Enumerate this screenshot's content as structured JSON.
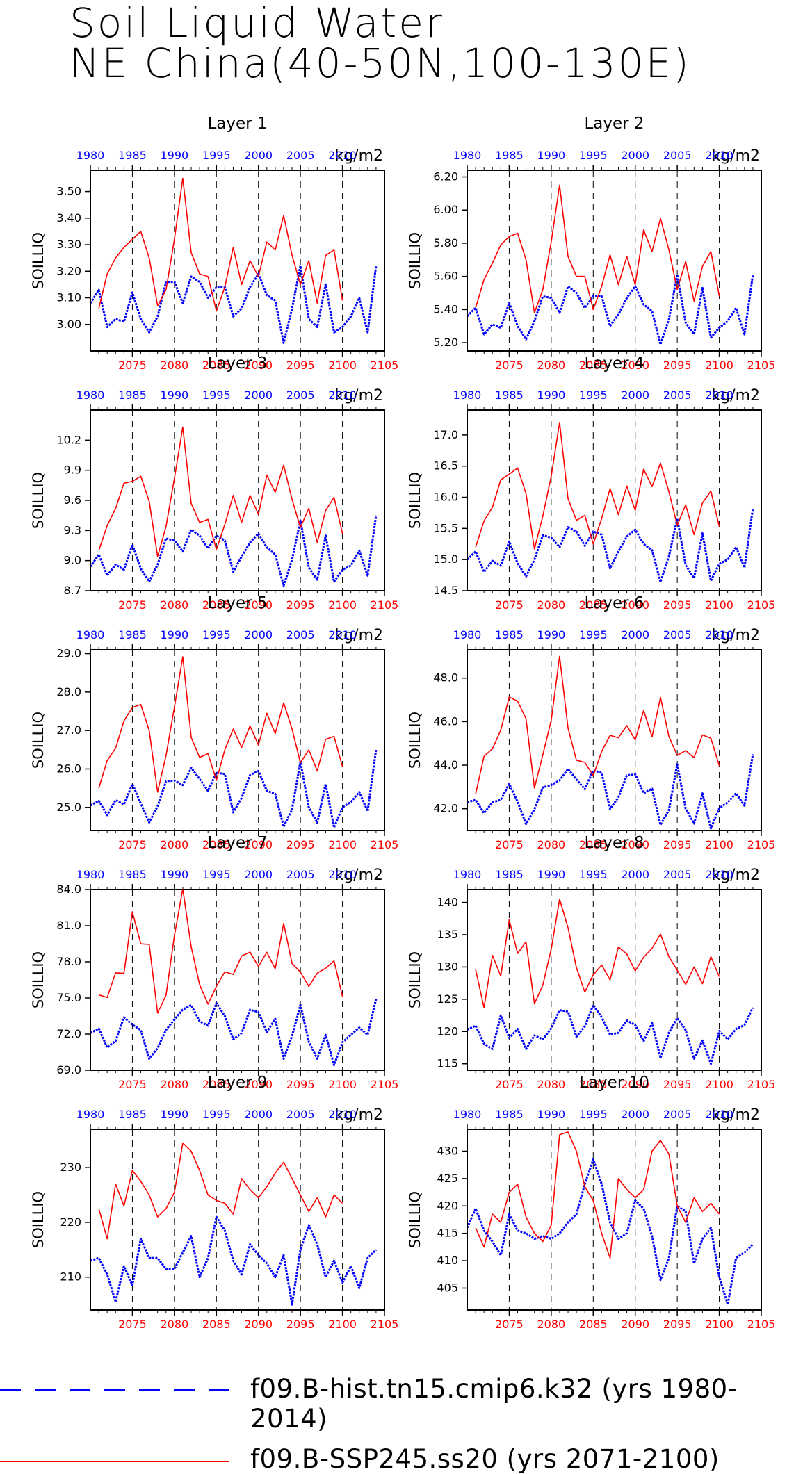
{
  "figure": {
    "title_line1": "Soil Liquid Water",
    "title_line2": "NE China(40-50N,100-130E)",
    "ylabel": "SOILLIQ",
    "units": "kg/m2",
    "top_axis_ticks": [
      1980,
      1985,
      1990,
      1995,
      2000,
      2005,
      2010
    ],
    "bottom_axis_ticks": [
      2075,
      2080,
      2085,
      2090,
      2095,
      2100,
      2105
    ],
    "hist_color": "#0000ff",
    "ssp_color": "#ff0000"
  },
  "legend": {
    "hist_label": "f09.B-hist.tn15.cmip6.k32 (yrs 1980-2014)",
    "ssp_label": "f09.B-SSP245.ss20 (yrs 2071-2100)"
  },
  "chart_data": [
    {
      "type": "line",
      "title": "Layer 1",
      "ylabel": "SOILLIQ",
      "units": "kg/m2",
      "yticks": [
        "3.00",
        "3.10",
        "3.20",
        "3.30",
        "3.40",
        "3.50"
      ],
      "ylim": [
        2.9,
        3.58
      ],
      "series": [
        {
          "name": "f09.B-hist.tn15.cmip6.k32 (yrs 1980-2014)",
          "x_start": 1980,
          "values": [
            3.08,
            3.13,
            2.99,
            3.02,
            3.01,
            3.12,
            3.02,
            2.97,
            3.03,
            3.16,
            3.16,
            3.08,
            3.18,
            3.16,
            3.1,
            3.14,
            3.14,
            3.03,
            3.06,
            3.14,
            3.19,
            3.11,
            3.09,
            2.93,
            3.06,
            3.22,
            3.02,
            2.99,
            3.15,
            2.97,
            2.99,
            3.03,
            3.1,
            2.97,
            3.22
          ]
        },
        {
          "name": "f09.B-SSP245.ss20 (yrs 2071-2100)",
          "x_start": 2071,
          "values": [
            3.06,
            3.19,
            3.25,
            3.29,
            3.32,
            3.35,
            3.25,
            3.07,
            3.13,
            3.32,
            3.55,
            3.27,
            3.19,
            3.18,
            3.05,
            3.14,
            3.29,
            3.15,
            3.24,
            3.18,
            3.31,
            3.28,
            3.41,
            3.26,
            3.15,
            3.24,
            3.08,
            3.26,
            3.28,
            3.09
          ]
        }
      ]
    },
    {
      "type": "line",
      "title": "Layer 2",
      "ylabel": "SOILLIQ",
      "units": "kg/m2",
      "yticks": [
        "5.20",
        "5.40",
        "5.60",
        "5.80",
        "6.00",
        "6.20"
      ],
      "ylim": [
        5.15,
        6.24
      ],
      "series": [
        {
          "name": "f09.B-hist.tn15.cmip6.k32 (yrs 1980-2014)",
          "x_start": 1980,
          "values": [
            5.36,
            5.41,
            5.25,
            5.31,
            5.29,
            5.44,
            5.3,
            5.22,
            5.33,
            5.48,
            5.47,
            5.38,
            5.54,
            5.5,
            5.41,
            5.48,
            5.48,
            5.3,
            5.37,
            5.47,
            5.54,
            5.43,
            5.39,
            5.19,
            5.34,
            5.61,
            5.32,
            5.25,
            5.53,
            5.23,
            5.29,
            5.33,
            5.41,
            5.25,
            5.61
          ]
        },
        {
          "name": "f09.B-SSP245.ss20 (yrs 2071-2100)",
          "x_start": 2071,
          "values": [
            5.41,
            5.58,
            5.68,
            5.79,
            5.84,
            5.86,
            5.7,
            5.38,
            5.52,
            5.81,
            6.15,
            5.72,
            5.6,
            5.6,
            5.4,
            5.54,
            5.73,
            5.55,
            5.72,
            5.55,
            5.88,
            5.75,
            5.95,
            5.76,
            5.52,
            5.69,
            5.45,
            5.66,
            5.75,
            5.48
          ]
        }
      ]
    },
    {
      "type": "line",
      "title": "Layer 3",
      "ylabel": "SOILLIQ",
      "units": "kg/m2",
      "yticks": [
        "8.7",
        "9.0",
        "9.3",
        "9.6",
        "9.9",
        "10.2"
      ],
      "ylim": [
        8.7,
        10.5
      ],
      "series": [
        {
          "name": "f09.B-hist.tn15.cmip6.k32 (yrs 1980-2014)",
          "x_start": 1980,
          "values": [
            8.94,
            9.06,
            8.85,
            8.96,
            8.91,
            9.16,
            8.92,
            8.79,
            8.96,
            9.22,
            9.2,
            9.09,
            9.31,
            9.25,
            9.12,
            9.25,
            9.2,
            8.89,
            9.04,
            9.18,
            9.27,
            9.13,
            9.06,
            8.75,
            9.01,
            9.4,
            8.93,
            8.81,
            9.25,
            8.79,
            8.91,
            8.95,
            9.1,
            8.85,
            9.45
          ]
        },
        {
          "name": "f09.B-SSP245.ss20 (yrs 2071-2100)",
          "x_start": 2071,
          "values": [
            9.1,
            9.35,
            9.52,
            9.77,
            9.79,
            9.84,
            9.59,
            9.04,
            9.34,
            9.82,
            10.33,
            9.57,
            9.38,
            9.41,
            9.11,
            9.36,
            9.65,
            9.38,
            9.65,
            9.46,
            9.85,
            9.68,
            9.95,
            9.61,
            9.33,
            9.52,
            9.18,
            9.5,
            9.63,
            9.27
          ]
        }
      ]
    },
    {
      "type": "line",
      "title": "Layer 4",
      "ylabel": "SOILLIQ",
      "units": "kg/m2",
      "yticks": [
        "14.5",
        "15.0",
        "15.5",
        "16.0",
        "16.5",
        "17.0"
      ],
      "ylim": [
        14.5,
        17.4
      ],
      "series": [
        {
          "name": "f09.B-hist.tn15.cmip6.k32 (yrs 1980-2014)",
          "x_start": 1980,
          "values": [
            15.0,
            15.13,
            14.8,
            14.98,
            14.9,
            15.29,
            14.94,
            14.73,
            15.0,
            15.39,
            15.35,
            15.2,
            15.52,
            15.45,
            15.22,
            15.45,
            15.4,
            14.86,
            15.13,
            15.37,
            15.48,
            15.25,
            15.15,
            14.64,
            15.05,
            15.66,
            14.91,
            14.7,
            15.42,
            14.66,
            14.93,
            15.0,
            15.2,
            14.87,
            15.82
          ]
        },
        {
          "name": "f09.B-SSP245.ss20 (yrs 2071-2100)",
          "x_start": 2071,
          "values": [
            15.2,
            15.62,
            15.84,
            16.28,
            16.37,
            16.47,
            16.06,
            15.17,
            15.7,
            16.34,
            17.2,
            15.98,
            15.63,
            15.71,
            15.25,
            15.66,
            16.14,
            15.72,
            16.18,
            15.79,
            16.45,
            16.17,
            16.55,
            16.09,
            15.55,
            15.88,
            15.4,
            15.91,
            16.1,
            15.53
          ]
        }
      ]
    },
    {
      "type": "line",
      "title": "Layer 5",
      "ylabel": "SOILLIQ",
      "units": "kg/m2",
      "yticks": [
        "25.0",
        "26.0",
        "27.0",
        "28.0",
        "29.0"
      ],
      "ylim": [
        24.4,
        29.1
      ],
      "series": [
        {
          "name": "f09.B-hist.tn15.cmip6.k32 (yrs 1980-2014)",
          "x_start": 1980,
          "values": [
            25.05,
            25.17,
            24.8,
            25.19,
            25.08,
            25.61,
            25.1,
            24.61,
            25.03,
            25.68,
            25.7,
            25.58,
            26.03,
            25.74,
            25.43,
            25.9,
            25.87,
            24.87,
            25.25,
            25.84,
            25.95,
            25.43,
            25.35,
            24.5,
            24.95,
            26.19,
            25.0,
            24.6,
            25.61,
            24.48,
            25.0,
            25.14,
            25.4,
            24.9,
            26.5
          ]
        },
        {
          "name": "f09.B-SSP245.ss20 (yrs 2071-2100)",
          "x_start": 2071,
          "values": [
            25.5,
            26.22,
            26.54,
            27.25,
            27.6,
            27.68,
            27.0,
            25.4,
            26.35,
            27.61,
            28.92,
            26.82,
            26.3,
            26.4,
            25.7,
            26.5,
            27.04,
            26.56,
            27.12,
            26.62,
            27.45,
            26.92,
            27.72,
            27.04,
            26.16,
            26.5,
            25.95,
            26.77,
            26.85,
            26.06
          ]
        }
      ]
    },
    {
      "type": "line",
      "title": "Layer 6",
      "ylabel": "SOILLIQ",
      "units": "kg/m2",
      "yticks": [
        "42.0",
        "44.0",
        "46.0",
        "48.0"
      ],
      "ylim": [
        41.0,
        49.3
      ],
      "series": [
        {
          "name": "f09.B-hist.tn15.cmip6.k32 (yrs 1980-2014)",
          "x_start": 1980,
          "values": [
            42.3,
            42.4,
            41.8,
            42.29,
            42.41,
            43.14,
            42.32,
            41.3,
            41.97,
            42.98,
            43.09,
            43.3,
            43.83,
            43.34,
            42.9,
            43.77,
            43.64,
            41.99,
            42.52,
            43.53,
            43.58,
            42.71,
            42.92,
            41.26,
            41.94,
            44.04,
            42.0,
            41.32,
            42.7,
            41.1,
            42.02,
            42.29,
            42.71,
            42.14,
            44.5
          ]
        },
        {
          "name": "f09.B-SSP245.ss20 (yrs 2071-2100)",
          "x_start": 2071,
          "values": [
            42.67,
            44.41,
            44.75,
            45.61,
            47.13,
            46.94,
            46.13,
            42.95,
            44.48,
            46.07,
            49.0,
            45.71,
            44.23,
            44.13,
            43.52,
            44.63,
            45.37,
            45.26,
            45.82,
            45.16,
            46.51,
            45.3,
            47.12,
            45.32,
            44.45,
            44.67,
            44.35,
            45.39,
            45.24,
            43.97
          ]
        }
      ]
    },
    {
      "type": "line",
      "title": "Layer 7",
      "ylabel": "SOILLIQ",
      "units": "kg/m2",
      "yticks": [
        "69.0",
        "72.0",
        "75.0",
        "78.0",
        "81.0",
        "84.0"
      ],
      "ylim": [
        69.0,
        84.0
      ],
      "series": [
        {
          "name": "f09.B-hist.tn15.cmip6.k32 (yrs 1980-2014)",
          "x_start": 1980,
          "values": [
            72.08,
            72.46,
            70.88,
            71.43,
            73.39,
            72.78,
            72.33,
            69.95,
            70.84,
            72.35,
            73.21,
            74.03,
            74.41,
            73.06,
            72.7,
            74.58,
            73.5,
            71.56,
            72.08,
            74.02,
            73.83,
            72.17,
            73.27,
            69.95,
            71.85,
            74.42,
            71.36,
            69.96,
            71.93,
            69.43,
            71.32,
            71.94,
            72.54,
            71.94,
            74.91
          ]
        },
        {
          "name": "f09.B-SSP245.ss20 (yrs 2071-2100)",
          "x_start": 2071,
          "values": [
            75.26,
            75.04,
            77.08,
            77.04,
            82.15,
            79.49,
            79.44,
            73.74,
            75.22,
            80.18,
            84.05,
            79.25,
            76.11,
            74.49,
            75.97,
            77.17,
            76.95,
            78.48,
            78.81,
            77.62,
            78.79,
            77.42,
            81.19,
            77.86,
            77.14,
            75.95,
            77.06,
            77.47,
            78.08,
            75.12
          ]
        }
      ]
    },
    {
      "type": "line",
      "title": "Layer 8",
      "ylabel": "SOILLIQ",
      "units": "kg/m2",
      "yticks": [
        "115",
        "120",
        "125",
        "130",
        "135",
        "140"
      ],
      "ylim": [
        114,
        142
      ],
      "series": [
        {
          "name": "f09.B-hist.tn15.cmip6.k32 (yrs 1980-2014)",
          "x_start": 1980,
          "values": [
            120.3,
            120.9,
            118.1,
            117.3,
            122.5,
            119.0,
            120.4,
            117.3,
            119.4,
            118.8,
            120.5,
            123.3,
            123.1,
            119.2,
            120.8,
            124.1,
            122.2,
            119.5,
            119.8,
            121.7,
            121.0,
            118.5,
            121.3,
            115.9,
            119.8,
            122.1,
            120.2,
            115.8,
            118.6,
            115.0,
            120.1,
            118.8,
            120.4,
            121.0,
            123.7
          ]
        },
        {
          "name": "f09.B-SSP245.ss20 (yrs 2071-2100)",
          "x_start": 2071,
          "values": [
            129.6,
            123.7,
            131.8,
            128.6,
            137.3,
            132.1,
            133.9,
            124.3,
            127.2,
            132.8,
            140.5,
            136.1,
            129.9,
            126.1,
            128.8,
            130.3,
            128.0,
            133.1,
            132.0,
            129.4,
            131.5,
            132.9,
            135.1,
            131.6,
            129.5,
            127.3,
            130.0,
            127.4,
            131.6,
            128.5
          ]
        }
      ]
    },
    {
      "type": "line",
      "title": "Layer 9",
      "ylabel": "SOILLIQ",
      "units": "kg/m2",
      "yticks": [
        "210",
        "220",
        "230"
      ],
      "ylim": [
        204,
        237
      ],
      "series": [
        {
          "name": "f09.B-hist.tn15.cmip6.k32 (yrs 1980-2014)",
          "x_start": 1980,
          "values": [
            213,
            213.5,
            210.5,
            205.5,
            212,
            208.5,
            217,
            213.5,
            213.5,
            211.5,
            211.5,
            214.5,
            217.5,
            210,
            213.5,
            221,
            218.5,
            213,
            210.5,
            216,
            214,
            212.5,
            210,
            214,
            205,
            215,
            219.5,
            216,
            210,
            213,
            209,
            212,
            208,
            213.5,
            215
          ]
        },
        {
          "name": "f09.B-SSP245.ss20 (yrs 2071-2100)",
          "x_start": 2071,
          "values": [
            222.5,
            217,
            227,
            223,
            229.5,
            227.5,
            225,
            221,
            222.5,
            225.5,
            234.5,
            233,
            229.5,
            225,
            224,
            223.5,
            221.5,
            228,
            226,
            224.5,
            226.5,
            229,
            231,
            228,
            225,
            222,
            224.5,
            221,
            225,
            223.5
          ]
        }
      ]
    },
    {
      "type": "line",
      "title": "Layer 10",
      "ylabel": "SOILLIQ",
      "units": "kg/m2",
      "yticks": [
        "405",
        "410",
        "415",
        "420",
        "425",
        "430"
      ],
      "ylim": [
        401,
        434
      ],
      "series": [
        {
          "name": "f09.B-hist.tn15.cmip6.k32 (yrs 1980-2014)",
          "x_start": 1980,
          "values": [
            416,
            419.5,
            415.5,
            413.5,
            411,
            418.5,
            415.5,
            415,
            414,
            414.5,
            414,
            415,
            417,
            418.5,
            424,
            428.5,
            424,
            417,
            414,
            415,
            421,
            419.5,
            414.5,
            406.5,
            410.5,
            420,
            419,
            409.5,
            414,
            416,
            407,
            402,
            410.5,
            411.5,
            413
          ]
        },
        {
          "name": "f09.B-SSP245.ss20 (yrs 2071-2100)",
          "x_start": 2071,
          "values": [
            416,
            412.5,
            418.5,
            417,
            422.5,
            424,
            418,
            415,
            413.5,
            416.5,
            433,
            433.5,
            430,
            423.5,
            421,
            415,
            410.5,
            425,
            423,
            421.5,
            423,
            430,
            432,
            429.5,
            420,
            417,
            421.5,
            419,
            420.5,
            418.5
          ]
        }
      ]
    }
  ]
}
